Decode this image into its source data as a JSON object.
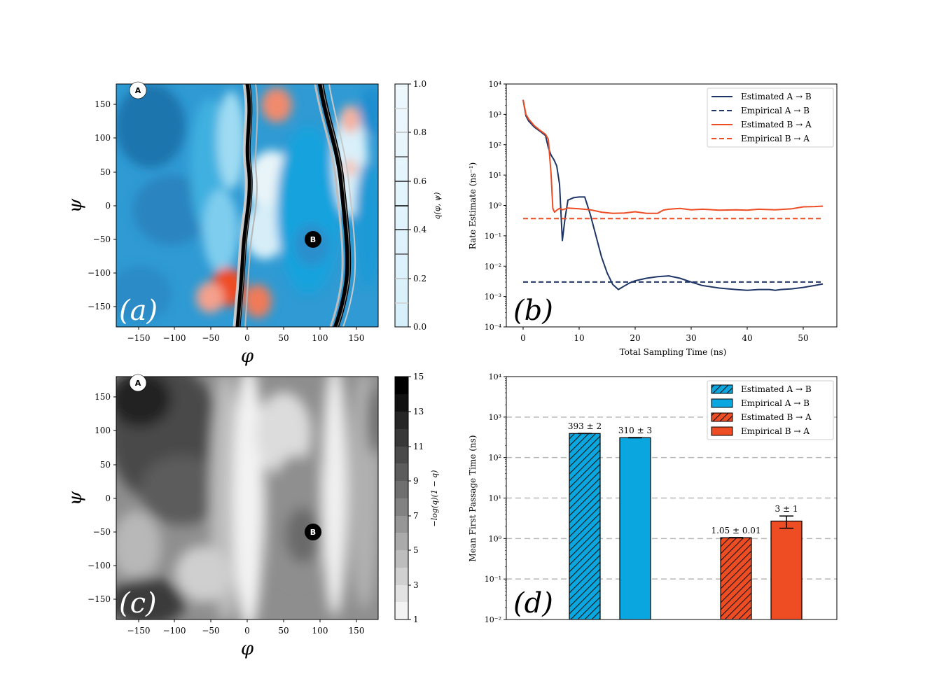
{
  "colors": {
    "blue": "#0aa6df",
    "deep_blue": "#1f74ad",
    "red": "#ee4c23",
    "navy": "#1f3566",
    "grid": "#b8b8b8"
  },
  "panel_a": {
    "label": "(a)",
    "xlabel": "φ",
    "ylabel": "ψ",
    "xticks": [
      "−150",
      "−100",
      "−50",
      "0",
      "50",
      "100",
      "150"
    ],
    "yticks": [
      "150",
      "100",
      "50",
      "0",
      "−50",
      "−100",
      "−150"
    ],
    "marker_a": "A",
    "marker_b": "B",
    "colorbar_label": "q(φ, ψ)",
    "colorbar_ticks": [
      "1.0",
      "0.8",
      "0.6",
      "0.4",
      "0.2",
      "0.0"
    ]
  },
  "panel_c": {
    "label": "(c)",
    "xlabel": "φ",
    "ylabel": "ψ",
    "xticks": [
      "−150",
      "−100",
      "−50",
      "0",
      "50",
      "100",
      "150"
    ],
    "yticks": [
      "150",
      "100",
      "50",
      "0",
      "−50",
      "−100",
      "−150"
    ],
    "marker_a": "A",
    "marker_b": "B",
    "colorbar_label": "−log(q)(1 − q)",
    "colorbar_ticks": [
      "15",
      "13",
      "11",
      "9",
      "7",
      "5",
      "3",
      "1"
    ]
  },
  "chart_data": [
    {
      "id": "b",
      "type": "line",
      "panel_label": "(b)",
      "xlabel": "Total Sampling Time (ns)",
      "ylabel": "Rate Estimate (ns⁻¹)",
      "xlim": [
        -3,
        56
      ],
      "ylim_log10": [
        -4,
        4
      ],
      "x_ticks": [
        0,
        10,
        20,
        30,
        40,
        50
      ],
      "y_tick_labels": [
        "10⁴",
        "10³",
        "10²",
        "10¹",
        "10⁰",
        "10⁻¹",
        "10⁻²",
        "10⁻³",
        "10⁻⁴"
      ],
      "legend": [
        {
          "text": "Estimated    A → B",
          "color": "#1f3566",
          "dash": false
        },
        {
          "text": "Empirical    A → B",
          "color": "#1f3566",
          "dash": true
        },
        {
          "text": "Estimated    B → A",
          "color": "#ee4c23",
          "dash": false
        },
        {
          "text": "Empirical    B → A",
          "color": "#ee4c23",
          "dash": true
        }
      ],
      "series": [
        {
          "name": "Estimated A → B",
          "color": "#1f3566",
          "dash": false,
          "x": [
            0,
            0.5,
            1,
            2,
            3,
            4,
            4.5,
            5,
            5.5,
            6,
            6.5,
            7,
            7.5,
            8,
            9,
            10,
            11,
            12,
            13,
            14,
            15,
            16,
            17,
            18,
            19,
            20,
            22,
            24,
            26,
            28,
            30,
            32,
            35,
            38,
            40,
            42,
            44,
            45,
            46,
            48,
            50,
            52,
            53.5
          ],
          "y": [
            3000,
            900,
            600,
            380,
            280,
            200,
            80,
            45,
            32,
            20,
            5,
            0.07,
            0.4,
            1.5,
            1.8,
            1.9,
            1.9,
            0.5,
            0.1,
            0.02,
            0.006,
            0.0025,
            0.0017,
            0.0022,
            0.0028,
            0.0033,
            0.004,
            0.0045,
            0.0048,
            0.004,
            0.003,
            0.0023,
            0.0019,
            0.0017,
            0.0016,
            0.0017,
            0.0017,
            0.0016,
            0.0017,
            0.0018,
            0.002,
            0.0023,
            0.0026
          ]
        },
        {
          "name": "Empirical A → B",
          "color": "#1f3566",
          "dash": true,
          "x": [
            0,
            53.5
          ],
          "y": [
            0.003,
            0.003
          ]
        },
        {
          "name": "Estimated B → A",
          "color": "#ee4c23",
          "dash": false,
          "x": [
            0,
            0.5,
            1,
            2,
            3,
            4,
            4.5,
            5,
            5.3,
            5.6,
            6,
            6.5,
            7,
            8,
            10,
            12,
            14,
            16,
            18,
            20,
            22,
            24,
            25,
            26,
            28,
            30,
            32,
            35,
            38,
            40,
            42,
            45,
            48,
            50,
            52,
            53.5
          ],
          "y": [
            3000,
            1000,
            700,
            420,
            300,
            220,
            150,
            10,
            0.8,
            0.6,
            0.7,
            0.8,
            0.72,
            0.82,
            0.78,
            0.72,
            0.6,
            0.55,
            0.56,
            0.62,
            0.55,
            0.55,
            0.7,
            0.75,
            0.8,
            0.72,
            0.75,
            0.7,
            0.72,
            0.7,
            0.75,
            0.72,
            0.78,
            0.9,
            0.92,
            0.95
          ]
        },
        {
          "name": "Empirical B → A",
          "color": "#ee4c23",
          "dash": true,
          "x": [
            0,
            53.5
          ],
          "y": [
            0.37,
            0.37
          ]
        }
      ]
    },
    {
      "id": "d",
      "type": "bar",
      "panel_label": "(d)",
      "ylabel": "Mean First Passage Time  (ns)",
      "ylim_log10": [
        -2,
        4
      ],
      "y_tick_labels": [
        "10⁴",
        "10³",
        "10²",
        "10¹",
        "10⁰",
        "10⁻¹",
        "10⁻²"
      ],
      "legend": [
        {
          "text": "Estimated    A → B",
          "color": "#0aa6df",
          "hatch": true
        },
        {
          "text": "Empirical    A → B",
          "color": "#0aa6df",
          "hatch": false
        },
        {
          "text": "Estimated    B → A",
          "color": "#ee4c23",
          "hatch": true
        },
        {
          "text": "Empirical    B → A",
          "color": "#ee4c23",
          "hatch": false
        }
      ],
      "bars": [
        {
          "name": "Estimated A → B",
          "value": 393,
          "error": 2,
          "label": "393 ± 2",
          "color": "#0aa6df",
          "hatch": true
        },
        {
          "name": "Empirical A → B",
          "value": 310,
          "error": 3,
          "label": "310 ± 3",
          "color": "#0aa6df",
          "hatch": false
        },
        {
          "name": "Estimated B → A",
          "value": 1.05,
          "error": 0.01,
          "label": "1.05 ± 0.01",
          "color": "#ee4c23",
          "hatch": true
        },
        {
          "name": "Empirical B → A",
          "value": 2.7,
          "error": 0.9,
          "label": "3 ± 1",
          "color": "#ee4c23",
          "hatch": false
        }
      ]
    }
  ]
}
